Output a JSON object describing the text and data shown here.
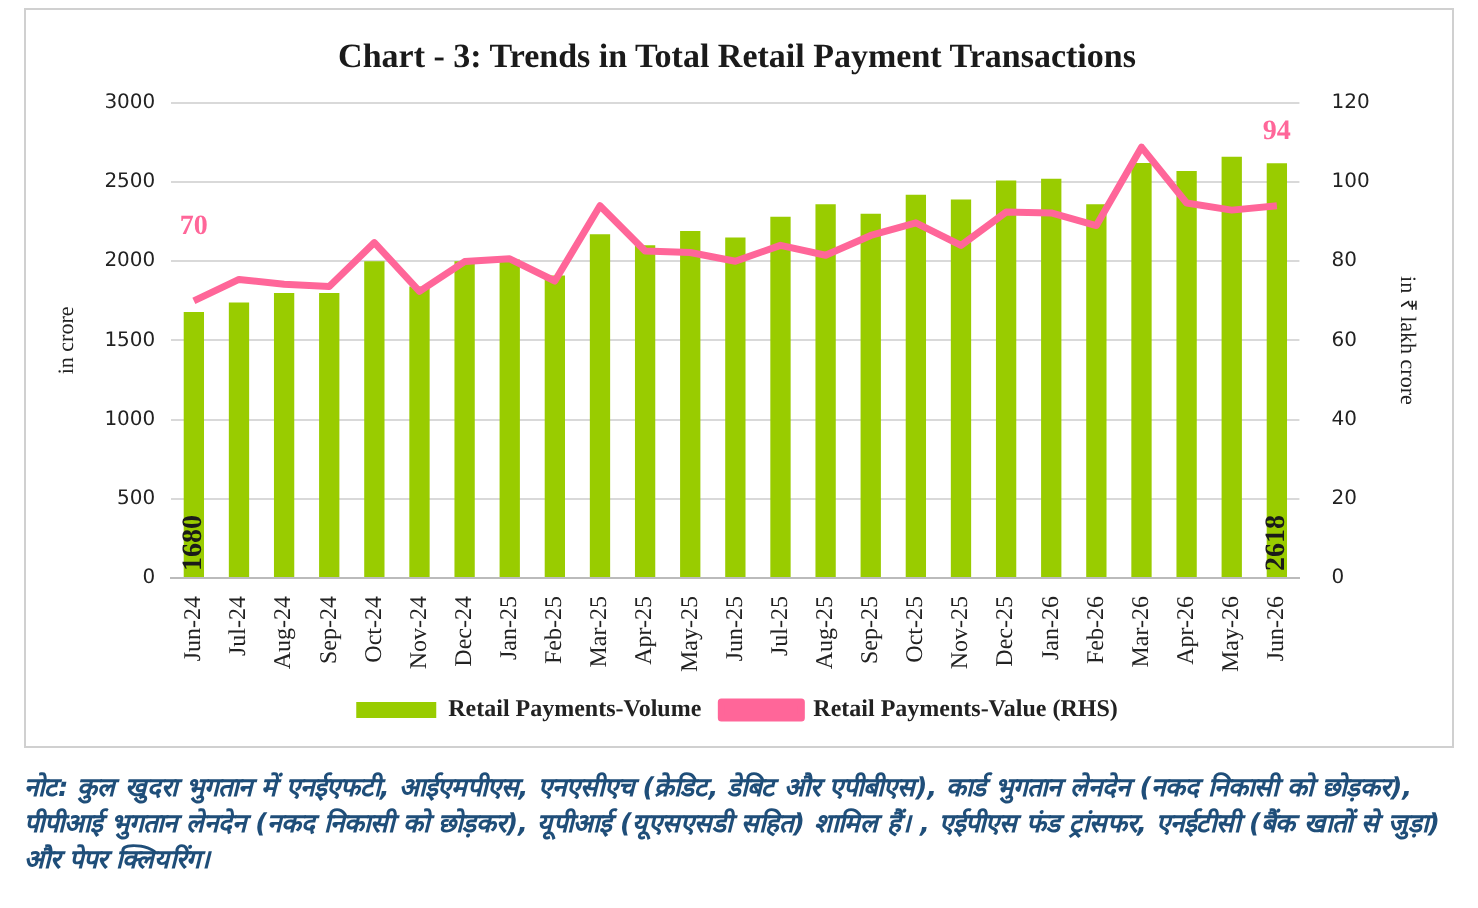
{
  "chart_data": {
    "type": "bar",
    "title": "Chart - 3: Trends in Total Retail Payment Transactions",
    "ylabel": "in crore",
    "y2label": "in ₹ lakh crore",
    "categories": [
      "Jun-24",
      "Jul-24",
      "Aug-24",
      "Sep-24",
      "Oct-24",
      "Nov-24",
      "Dec-24",
      "Jan-25",
      "Feb-25",
      "Mar-25",
      "Apr-25",
      "May-25",
      "Jun-25",
      "Jul-25",
      "Aug-25",
      "Sep-25",
      "Oct-25",
      "Nov-25",
      "Dec-25",
      "Jan-26",
      "Feb-26",
      "Mar-26",
      "Apr-26",
      "May-26",
      "Jun-26"
    ],
    "series": [
      {
        "name": "Retail Payments-Volume",
        "color": "#99cc00",
        "values": [
          1680,
          1740,
          1800,
          1800,
          2000,
          1840,
          2000,
          2010,
          1910,
          2170,
          2100,
          2190,
          2150,
          2280,
          2360,
          2300,
          2420,
          2390,
          2510,
          2520,
          2360,
          2620,
          2570,
          2660,
          2618
        ],
        "value_labels": [
          "1680",
          null,
          null,
          null,
          null,
          null,
          null,
          null,
          null,
          null,
          null,
          null,
          null,
          null,
          null,
          null,
          null,
          null,
          null,
          null,
          null,
          null,
          null,
          null,
          "2618"
        ]
      },
      {
        "name": "Retail Payments-Value (RHS)",
        "type": "line",
        "axis": "y2",
        "color": "#ff6699",
        "marker": "none",
        "values": [
          70,
          75.4,
          74.2,
          73.6,
          84.7,
          72.4,
          79.9,
          80.6,
          75,
          94,
          82.6,
          82.2,
          80,
          84,
          81.5,
          86.5,
          89.7,
          84,
          92.4,
          92.2,
          89,
          108.8,
          94.7,
          92.9,
          94
        ],
        "value_labels": [
          "70",
          null,
          null,
          null,
          null,
          null,
          null,
          null,
          null,
          null,
          null,
          null,
          null,
          null,
          null,
          null,
          null,
          null,
          null,
          null,
          null,
          null,
          null,
          null,
          "94"
        ]
      }
    ],
    "ylim": [
      0,
      3000
    ],
    "yticks": [
      0,
      500,
      1000,
      1500,
      2000,
      2500,
      3000
    ],
    "y2lim": [
      0,
      120
    ],
    "y2ticks": [
      0,
      20,
      40,
      60,
      80,
      100,
      120
    ],
    "grid": "y",
    "legend": "bottom",
    "annotations": [
      "नोट: कुल खुदरा भुगतान में एनईएफटी, आईएमपीएस, एनएसीएच (क्रेडिट, डेबिट और एपीबीएस), कार्ड भुगतान लेनदेन (नकद निकासी को छोड़कर), पीपीआई भुगतान लेनदेन (नकद निकासी को छोड़कर), यूपीआई (यूएसएसडी सहित) शामिल हैं। , एईपीएस फंड ट्रांसफर, एनईटीसी (बैंक खातों से जुड़ा) और पेपर क्लियरिंग।"
    ]
  }
}
